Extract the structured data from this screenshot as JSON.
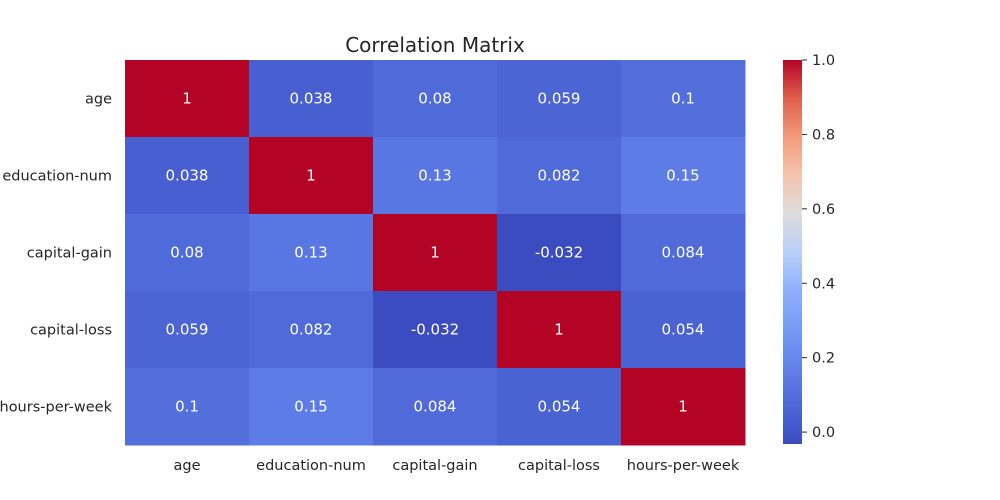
{
  "chart_data": {
    "type": "heatmap",
    "title": "Correlation Matrix",
    "rows": [
      "age",
      "education-num",
      "capital-gain",
      "capital-loss",
      "hours-per-week"
    ],
    "columns": [
      "age",
      "education-num",
      "capital-gain",
      "capital-loss",
      "hours-per-week"
    ],
    "values": [
      [
        1,
        0.038,
        0.08,
        0.059,
        0.1
      ],
      [
        0.038,
        1,
        0.13,
        0.082,
        0.15
      ],
      [
        0.08,
        0.13,
        1,
        -0.032,
        0.084
      ],
      [
        0.059,
        0.082,
        -0.032,
        1,
        0.054
      ],
      [
        0.1,
        0.15,
        0.084,
        0.054,
        1
      ]
    ],
    "cell_labels": [
      [
        "1",
        "0.038",
        "0.08",
        "0.059",
        "0.1"
      ],
      [
        "0.038",
        "1",
        "0.13",
        "0.082",
        "0.15"
      ],
      [
        "0.08",
        "0.13",
        "1",
        "-0.032",
        "0.084"
      ],
      [
        "0.059",
        "0.082",
        "-0.032",
        "1",
        "0.054"
      ],
      [
        "0.1",
        "0.15",
        "0.084",
        "0.054",
        "1"
      ]
    ],
    "colormap": "coolwarm",
    "vmin": -0.032,
    "vmax": 1,
    "colorbar": {
      "ticks": [
        0.0,
        0.2,
        0.4,
        0.6,
        0.8,
        1.0
      ],
      "tick_labels": [
        "0.0",
        "0.2",
        "0.4",
        "0.6",
        "0.8",
        "1.0"
      ]
    },
    "grid": false
  }
}
